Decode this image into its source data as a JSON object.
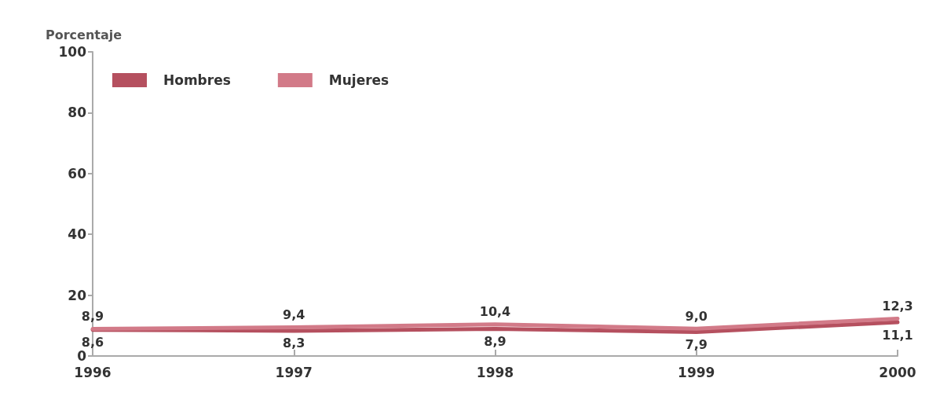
{
  "chart_data": {
    "type": "line",
    "ylabel": "Porcentaje",
    "x": [
      1996,
      1997,
      1998,
      1999,
      2000
    ],
    "xlim": [
      1996,
      2000
    ],
    "xticks": [
      1996,
      1997,
      1998,
      1999,
      2000
    ],
    "ylim": [
      0,
      100
    ],
    "yticks": [
      0,
      20,
      40,
      60,
      80,
      100
    ],
    "grid": false,
    "legend": "top left",
    "marker": "none",
    "line_style": "solid",
    "series": [
      {
        "name": "Hombres",
        "color": "#b5505f",
        "values": [
          8.6,
          8.3,
          8.9,
          7.9,
          11.1
        ],
        "value_labels": [
          "8,6",
          "8,3",
          "8,9",
          "7,9",
          "11,1"
        ]
      },
      {
        "name": "Mujeres",
        "color": "#d27a88",
        "values": [
          8.9,
          9.4,
          10.4,
          9.0,
          12.3
        ],
        "value_labels": [
          "8,9",
          "9,4",
          "10,4",
          "9,0",
          "12,3"
        ]
      }
    ]
  }
}
